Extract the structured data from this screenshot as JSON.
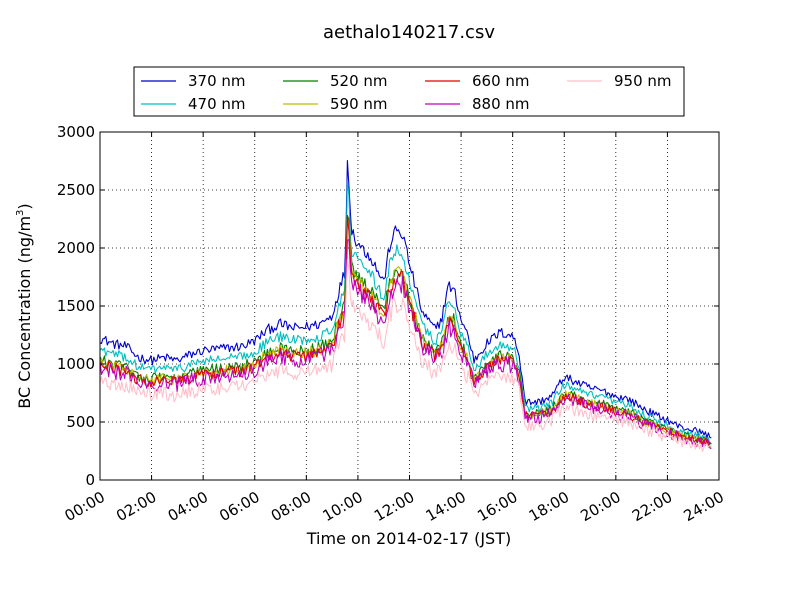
{
  "chart_data": {
    "type": "line",
    "title": "aethalo140217.csv",
    "xlabel": "Time on 2014-02-17 (JST)",
    "ylabel": "BC Concentration (ng/m",
    "ylabel_sup": "3",
    "ylabel_end": ")",
    "x_ticks": [
      "00:00",
      "02:00",
      "04:00",
      "06:00",
      "08:00",
      "10:00",
      "12:00",
      "14:00",
      "16:00",
      "18:00",
      "20:00",
      "22:00",
      "24:00"
    ],
    "y_ticks": [
      "0",
      "500",
      "1000",
      "1500",
      "2000",
      "2500",
      "3000"
    ],
    "xlim_hours": [
      0,
      24
    ],
    "ylim": [
      0,
      3000
    ],
    "grid": true,
    "legend_placement": "top-center outside",
    "series_base": {
      "x_hours": [
        0,
        0.5,
        1,
        1.5,
        2,
        2.5,
        3,
        3.5,
        4,
        4.5,
        5,
        5.5,
        6,
        6.5,
        7,
        7.5,
        8,
        8.5,
        9,
        9.25,
        9.5,
        9.6,
        9.75,
        10,
        10.5,
        11,
        11.25,
        11.5,
        11.75,
        12,
        12.5,
        13,
        13.25,
        13.5,
        13.75,
        14,
        14.25,
        14.5,
        15,
        15.5,
        16,
        16.25,
        16.5,
        17,
        17.5,
        18,
        18.5,
        19,
        19.5,
        20,
        20.5,
        21,
        21.5,
        22,
        22.5,
        23,
        23.5,
        23.7
      ],
      "y": [
        1020,
        980,
        960,
        880,
        860,
        880,
        860,
        900,
        930,
        940,
        950,
        960,
        1000,
        1080,
        1120,
        1090,
        1100,
        1120,
        1180,
        1350,
        1500,
        2350,
        1800,
        1700,
        1600,
        1420,
        1700,
        1800,
        1760,
        1550,
        1200,
        1080,
        1160,
        1400,
        1350,
        1150,
        1050,
        860,
        980,
        1060,
        1040,
        900,
        560,
        560,
        600,
        740,
        700,
        660,
        640,
        600,
        580,
        520,
        470,
        430,
        380,
        360,
        330,
        300
      ]
    },
    "series": [
      {
        "name": "370 nm",
        "color": "#0000cc",
        "offset": 110,
        "scale": 1.1,
        "noise": 45
      },
      {
        "name": "470 nm",
        "color": "#00bfbf",
        "offset": 60,
        "scale": 1.05,
        "noise": 45
      },
      {
        "name": "520 nm",
        "color": "#007f00",
        "offset": 20,
        "scale": 1.0,
        "noise": 50
      },
      {
        "name": "590 nm",
        "color": "#bfbf00",
        "offset": 10,
        "scale": 0.99,
        "noise": 50
      },
      {
        "name": "660 nm",
        "color": "#e00000",
        "offset": 0,
        "scale": 0.98,
        "noise": 55
      },
      {
        "name": "880 nm",
        "color": "#bf00bf",
        "offset": -20,
        "scale": 0.97,
        "noise": 75
      },
      {
        "name": "950 nm",
        "color": "#ffc0cb",
        "offset": -90,
        "scale": 0.93,
        "noise": 70
      }
    ]
  }
}
